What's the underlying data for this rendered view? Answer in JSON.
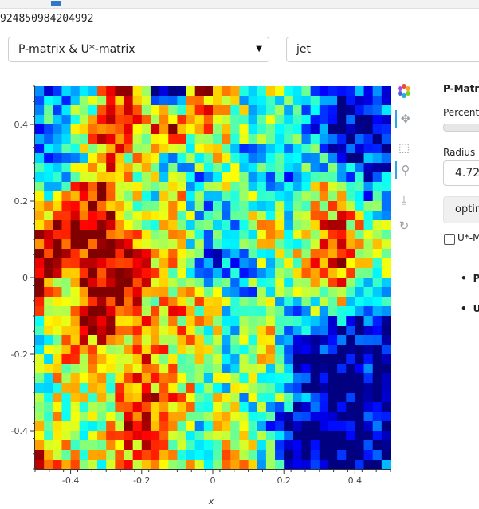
{
  "top_bar": {
    "value_text": "924850984204992"
  },
  "controls": {
    "matrix_select": {
      "value": "P-matrix & U*-matrix"
    },
    "cmap_select": {
      "value": "jet"
    }
  },
  "side_panel": {
    "title": "P-Matri",
    "percent_label": "Percent",
    "radius_label": "Radius",
    "radius_value": "4.72",
    "button_label": "optim",
    "checkbox_label": "U*-M",
    "bullets": [
      "P-",
      "U*"
    ]
  },
  "toolbar": {
    "tools": [
      {
        "icon": "bokeh-logo-icon"
      },
      {
        "icon": "pan-icon"
      },
      {
        "icon": "box-zoom-icon"
      },
      {
        "icon": "wheel-zoom-icon"
      },
      {
        "icon": "save-icon"
      },
      {
        "icon": "reset-icon"
      }
    ]
  },
  "chart_data": {
    "type": "heatmap",
    "title": "",
    "xlabel": "x",
    "ylabel": "",
    "xlim": [
      -0.5,
      0.5
    ],
    "ylim": [
      -0.5,
      0.5
    ],
    "colormap": "jet",
    "x_ticks": [
      "-0.4",
      "-0.2",
      "0",
      "0.2",
      "0.4"
    ],
    "y_ticks": [
      "0.4",
      "0.2",
      "0",
      "-0.2",
      "-0.4"
    ],
    "grid_size": 40,
    "region_values": [
      [
        0.2,
        0.1,
        0.3,
        0.8,
        0.9,
        0.1,
        0.0,
        0.9,
        0.8,
        0.4,
        0.5,
        0.4,
        0.3,
        0.2,
        0.1,
        0.2
      ],
      [
        0.3,
        0.5,
        0.6,
        0.9,
        0.7,
        0.8,
        0.9,
        0.7,
        0.6,
        0.5,
        0.4,
        0.3,
        0.2,
        0.1,
        0.0,
        0.1
      ],
      [
        0.2,
        0.1,
        0.5,
        0.8,
        0.6,
        0.5,
        0.3,
        0.4,
        0.6,
        0.2,
        0.3,
        0.5,
        0.4,
        0.2,
        0.1,
        0.2
      ],
      [
        0.4,
        0.6,
        0.9,
        0.9,
        0.6,
        0.5,
        0.7,
        0.3,
        0.5,
        0.6,
        0.3,
        0.2,
        0.6,
        0.7,
        0.3,
        0.2
      ],
      [
        0.8,
        0.9,
        1.0,
        0.9,
        0.6,
        0.5,
        0.6,
        0.4,
        0.3,
        0.5,
        0.6,
        0.4,
        0.7,
        0.8,
        0.6,
        0.5
      ],
      [
        0.9,
        1.0,
        0.9,
        0.9,
        0.9,
        0.7,
        0.6,
        0.3,
        0.2,
        0.4,
        0.5,
        0.6,
        0.8,
        0.9,
        0.7,
        0.6
      ],
      [
        0.8,
        0.5,
        0.9,
        1.0,
        0.9,
        0.6,
        0.7,
        0.6,
        0.4,
        0.3,
        0.5,
        0.4,
        0.6,
        0.7,
        0.4,
        0.3
      ],
      [
        0.5,
        0.6,
        0.9,
        0.9,
        0.7,
        0.8,
        0.7,
        0.6,
        0.5,
        0.4,
        0.6,
        0.3,
        0.2,
        0.1,
        0.0,
        0.1
      ],
      [
        0.4,
        0.7,
        0.6,
        0.5,
        0.8,
        0.7,
        0.6,
        0.5,
        0.4,
        0.6,
        0.5,
        0.1,
        0.0,
        0.0,
        0.1,
        0.0
      ],
      [
        0.5,
        0.6,
        0.5,
        0.6,
        0.9,
        0.8,
        0.7,
        0.6,
        0.5,
        0.4,
        0.5,
        0.2,
        0.1,
        0.0,
        0.0,
        0.1
      ],
      [
        0.6,
        0.5,
        0.4,
        0.6,
        0.8,
        0.9,
        0.5,
        0.4,
        0.6,
        0.5,
        0.3,
        0.1,
        0.0,
        0.0,
        0.1,
        0.0
      ],
      [
        0.9,
        0.8,
        0.5,
        0.6,
        0.7,
        0.9,
        0.6,
        0.5,
        0.7,
        0.6,
        0.4,
        0.0,
        0.0,
        0.1,
        0.0,
        0.1
      ]
    ]
  }
}
